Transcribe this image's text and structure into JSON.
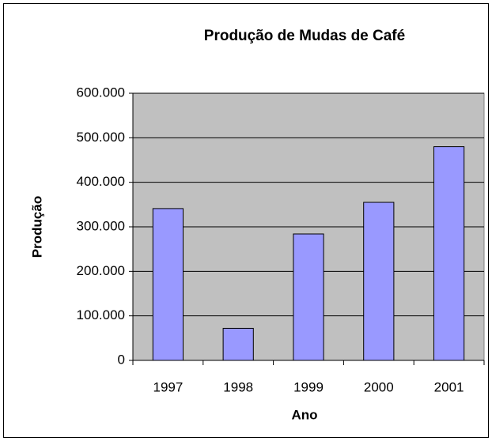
{
  "chart_data": {
    "type": "bar",
    "title": "Produção de Mudas de Café",
    "x_label": "Ano",
    "y_label": "Produção",
    "categories": [
      "1997",
      "1998",
      "1999",
      "2000",
      "2001"
    ],
    "values": [
      341000,
      72000,
      284000,
      355000,
      480000
    ],
    "color": "#9999ff",
    "plot_background": "#c0c0c0",
    "ylim": [
      0,
      600000
    ],
    "yticks": [
      0,
      {
        "value": 100000,
        "label": "100.000"
      },
      {
        "value": 200000,
        "label": "200.000"
      },
      {
        "value": 300000,
        "label": "300.000"
      },
      {
        "value": 400000,
        "label": "400.000"
      },
      {
        "value": 500000,
        "label": "500.000"
      },
      {
        "value": 600000,
        "label": "600.000"
      }
    ],
    "grid": true
  }
}
